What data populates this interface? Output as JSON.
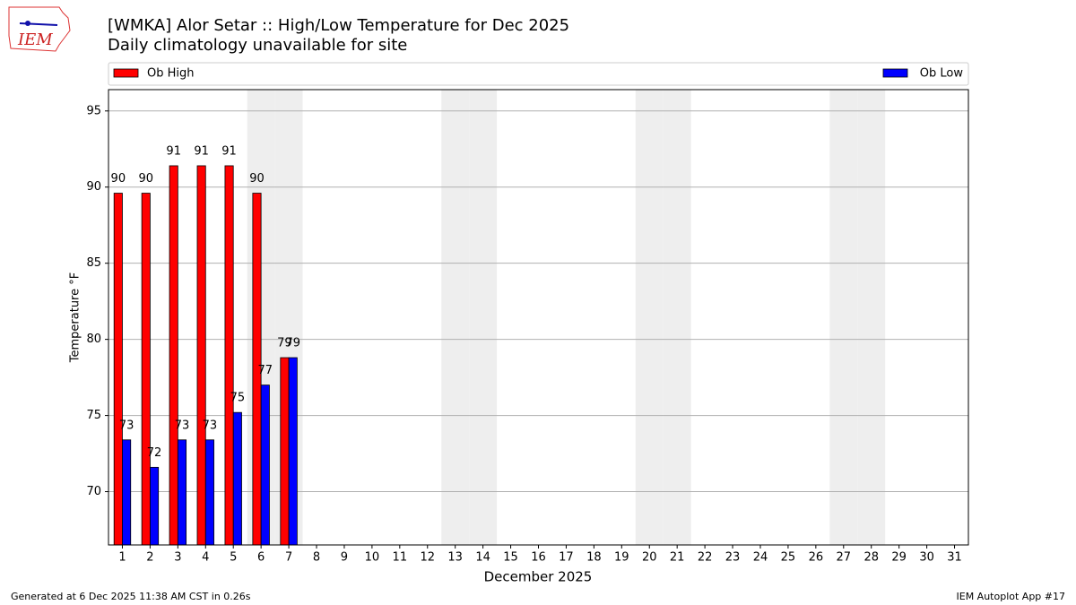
{
  "logo_text": "IEM",
  "footer_left": "Generated at 6 Dec 2025 11:38 AM CST in 0.26s",
  "footer_right": "IEM Autoplot App #17",
  "chart_data": {
    "type": "bar",
    "title": "[WMKA] Alor Setar :: High/Low Temperature for Dec 2025",
    "subtitle": "Daily climatology unavailable for site",
    "x_label": "December 2025",
    "y_label": "Temperature °F",
    "x": [
      1,
      2,
      3,
      4,
      5,
      6,
      7,
      8,
      9,
      10,
      11,
      12,
      13,
      14,
      15,
      16,
      17,
      18,
      19,
      20,
      21,
      22,
      23,
      24,
      25,
      26,
      27,
      28,
      29,
      30,
      31
    ],
    "xlim": [
      0.5,
      31.5
    ],
    "ylim": [
      66.5,
      96.4
    ],
    "yticks": [
      70,
      75,
      80,
      85,
      90,
      95
    ],
    "grid": true,
    "shaded_x": [
      6,
      7,
      13,
      14,
      20,
      21,
      27,
      28
    ],
    "shade_color": "#eeeeee",
    "series": [
      {
        "name": "Ob High",
        "color": "#ff0000",
        "values": [
          89.6,
          89.6,
          91.4,
          91.4,
          91.4,
          89.6,
          78.8,
          null,
          null,
          null,
          null,
          null,
          null,
          null,
          null,
          null,
          null,
          null,
          null,
          null,
          null,
          null,
          null,
          null,
          null,
          null,
          null,
          null,
          null,
          null,
          null
        ],
        "value_labels": [
          "90",
          "90",
          "91",
          "91",
          "91",
          "90",
          "79",
          null,
          null,
          null,
          null,
          null,
          null,
          null,
          null,
          null,
          null,
          null,
          null,
          null,
          null,
          null,
          null,
          null,
          null,
          null,
          null,
          null,
          null,
          null,
          null
        ]
      },
      {
        "name": "Ob Low",
        "color": "#0000ff",
        "values": [
          73.4,
          71.6,
          73.4,
          73.4,
          75.2,
          77,
          78.8,
          null,
          null,
          null,
          null,
          null,
          null,
          null,
          null,
          null,
          null,
          null,
          null,
          null,
          null,
          null,
          null,
          null,
          null,
          null,
          null,
          null,
          null,
          null,
          null
        ],
        "value_labels": [
          "73",
          "72",
          "73",
          "73",
          "75",
          "77",
          "79",
          null,
          null,
          null,
          null,
          null,
          null,
          null,
          null,
          null,
          null,
          null,
          null,
          null,
          null,
          null,
          null,
          null,
          null,
          null,
          null,
          null,
          null,
          null,
          null
        ]
      }
    ]
  }
}
